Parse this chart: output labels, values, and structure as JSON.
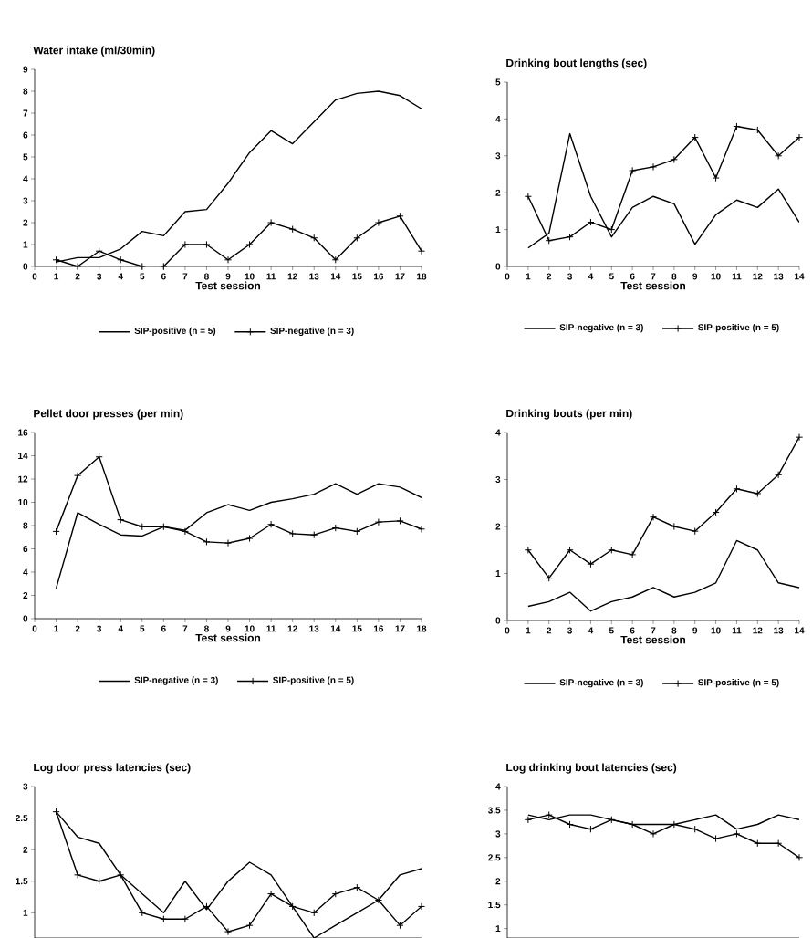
{
  "chart_data": [
    {
      "type": "line",
      "title": "Water intake (ml/30min)",
      "xlabel": "Test session",
      "x": [
        1,
        2,
        3,
        4,
        5,
        6,
        7,
        8,
        9,
        10,
        11,
        12,
        13,
        14,
        15,
        16,
        17,
        18
      ],
      "xlim": [
        0,
        18
      ],
      "ylim": [
        0,
        9
      ],
      "xticks": [
        0,
        1,
        2,
        3,
        4,
        5,
        6,
        7,
        8,
        9,
        10,
        11,
        12,
        13,
        14,
        15,
        16,
        17,
        18
      ],
      "yticks": [
        0,
        1,
        2,
        3,
        4,
        5,
        6,
        7,
        8,
        9
      ],
      "legend": "bottom",
      "series": [
        {
          "name": "SIP-positive (n = 5)",
          "color": "#000000",
          "marker": "none",
          "values": [
            0.2,
            0.4,
            0.4,
            0.8,
            1.6,
            1.4,
            2.5,
            2.6,
            3.8,
            5.2,
            6.2,
            5.6,
            6.6,
            7.6,
            7.9,
            8.0,
            7.8,
            7.2
          ]
        },
        {
          "name": "SIP-negative (n = 3)",
          "color": "#000000",
          "marker": "cross",
          "values": [
            0.3,
            0.0,
            0.7,
            0.3,
            0.0,
            0.0,
            1.0,
            1.0,
            0.3,
            1.0,
            2.0,
            1.7,
            1.3,
            0.3,
            1.3,
            2.0,
            2.3,
            0.7
          ]
        }
      ]
    },
    {
      "type": "line",
      "title": "Drinking bout lengths (sec)",
      "xlabel": "Test session",
      "x": [
        1,
        2,
        3,
        4,
        5,
        6,
        7,
        8,
        9,
        10,
        11,
        12,
        13,
        14
      ],
      "xlim": [
        0,
        14
      ],
      "ylim": [
        0,
        5
      ],
      "xticks": [
        0,
        1,
        2,
        3,
        4,
        5,
        6,
        7,
        8,
        9,
        10,
        11,
        12,
        13,
        14
      ],
      "yticks": [
        0,
        1,
        2,
        3,
        4,
        5
      ],
      "legend": "bottom",
      "series": [
        {
          "name": "SIP-negative (n = 3)",
          "color": "#000000",
          "marker": "none",
          "values": [
            0.5,
            0.9,
            3.6,
            1.9,
            0.8,
            1.6,
            1.9,
            1.7,
            0.6,
            1.4,
            1.8,
            1.6,
            2.1,
            1.2
          ]
        },
        {
          "name": "SIP-positive (n = 5)",
          "color": "#000000",
          "marker": "cross",
          "values": [
            1.9,
            0.7,
            0.8,
            1.2,
            1.0,
            2.6,
            2.7,
            2.9,
            3.5,
            2.4,
            3.8,
            3.7,
            3.0,
            3.5
          ]
        }
      ]
    },
    {
      "type": "line",
      "title": "Pellet door presses (per min)",
      "xlabel": "Test session",
      "x": [
        1,
        2,
        3,
        4,
        5,
        6,
        7,
        8,
        9,
        10,
        11,
        12,
        13,
        14,
        15,
        16,
        17,
        18
      ],
      "xlim": [
        0,
        18
      ],
      "ylim": [
        0,
        16
      ],
      "xticks": [
        0,
        1,
        2,
        3,
        4,
        5,
        6,
        7,
        8,
        9,
        10,
        11,
        12,
        13,
        14,
        15,
        16,
        17,
        18
      ],
      "yticks": [
        0,
        2,
        4,
        6,
        8,
        10,
        12,
        14,
        16
      ],
      "legend": "bottom",
      "series": [
        {
          "name": "SIP-negative (n = 3)",
          "color": "#000000",
          "marker": "none",
          "values": [
            2.6,
            9.1,
            8.1,
            7.2,
            7.1,
            7.9,
            7.6,
            9.1,
            9.8,
            9.3,
            10.0,
            10.3,
            10.7,
            11.6,
            10.7,
            11.6,
            11.3,
            10.4
          ]
        },
        {
          "name": "SIP-positive (n = 5)",
          "color": "#000000",
          "marker": "cross",
          "values": [
            7.5,
            12.3,
            13.9,
            8.5,
            7.9,
            7.9,
            7.5,
            6.6,
            6.5,
            6.9,
            8.1,
            7.3,
            7.2,
            7.8,
            7.5,
            8.3,
            8.4,
            7.7
          ]
        }
      ]
    },
    {
      "type": "line",
      "title": "Drinking bouts (per min)",
      "xlabel": "Test session",
      "x": [
        1,
        2,
        3,
        4,
        5,
        6,
        7,
        8,
        9,
        10,
        11,
        12,
        13,
        14
      ],
      "xlim": [
        0,
        14
      ],
      "ylim": [
        0,
        4
      ],
      "xticks": [
        0,
        1,
        2,
        3,
        4,
        5,
        6,
        7,
        8,
        9,
        10,
        11,
        12,
        13,
        14
      ],
      "yticks": [
        0,
        1,
        2,
        3,
        4
      ],
      "legend": "bottom",
      "series": [
        {
          "name": "SIP-negative (n = 3)",
          "color": "#000000",
          "marker": "none",
          "values": [
            0.3,
            0.4,
            0.6,
            0.2,
            0.4,
            0.5,
            0.7,
            0.5,
            0.6,
            0.8,
            1.7,
            1.5,
            0.8,
            0.7
          ]
        },
        {
          "name": "SIP-positive (n = 5)",
          "color": "#000000",
          "marker": "cross",
          "values": [
            1.5,
            0.9,
            1.5,
            1.2,
            1.5,
            1.4,
            2.2,
            2.0,
            1.9,
            2.3,
            2.8,
            2.7,
            3.1,
            3.9
          ]
        }
      ]
    },
    {
      "type": "line",
      "title": "Log door press latencies (sec)",
      "x": [
        1,
        2,
        3,
        4,
        5,
        6,
        7,
        8,
        9,
        10,
        11,
        12,
        13,
        14,
        15,
        16,
        17,
        18
      ],
      "xlim": [
        0,
        18
      ],
      "ylim": [
        0.6,
        3
      ],
      "yticks": [
        1,
        1.5,
        2,
        2.5,
        3
      ],
      "tick_labels": "y",
      "series": [
        {
          "color": "#000000",
          "marker": "none",
          "values": [
            2.6,
            2.2,
            2.1,
            1.6,
            1.3,
            1.0,
            1.5,
            1.05,
            1.5,
            1.8,
            1.6,
            1.1,
            0.6,
            0.8,
            1.0,
            1.2,
            1.6,
            1.7
          ]
        },
        {
          "color": "#000000",
          "marker": "cross",
          "values": [
            2.6,
            1.6,
            1.5,
            1.6,
            1.0,
            0.9,
            0.9,
            1.1,
            0.7,
            0.8,
            1.3,
            1.1,
            1.0,
            1.3,
            1.4,
            1.2,
            0.8,
            1.1
          ]
        }
      ]
    },
    {
      "type": "line",
      "title": "Log drinking bout latencies (sec)",
      "x": [
        1,
        2,
        3,
        4,
        5,
        6,
        7,
        8,
        9,
        10,
        11,
        12,
        13,
        14
      ],
      "xlim": [
        0,
        14
      ],
      "ylim": [
        0.8,
        4
      ],
      "yticks": [
        1,
        1.5,
        2,
        2.5,
        3,
        3.5,
        4
      ],
      "tick_labels": "y",
      "series": [
        {
          "color": "#000000",
          "marker": "none",
          "values": [
            3.4,
            3.3,
            3.4,
            3.4,
            3.3,
            3.2,
            3.2,
            3.2,
            3.3,
            3.4,
            3.1,
            3.2,
            3.4,
            3.3
          ]
        },
        {
          "color": "#000000",
          "marker": "cross",
          "values": [
            3.3,
            3.4,
            3.2,
            3.1,
            3.3,
            3.2,
            3.0,
            3.2,
            3.1,
            2.9,
            3.0,
            2.8,
            2.8,
            2.5
          ]
        }
      ]
    }
  ]
}
